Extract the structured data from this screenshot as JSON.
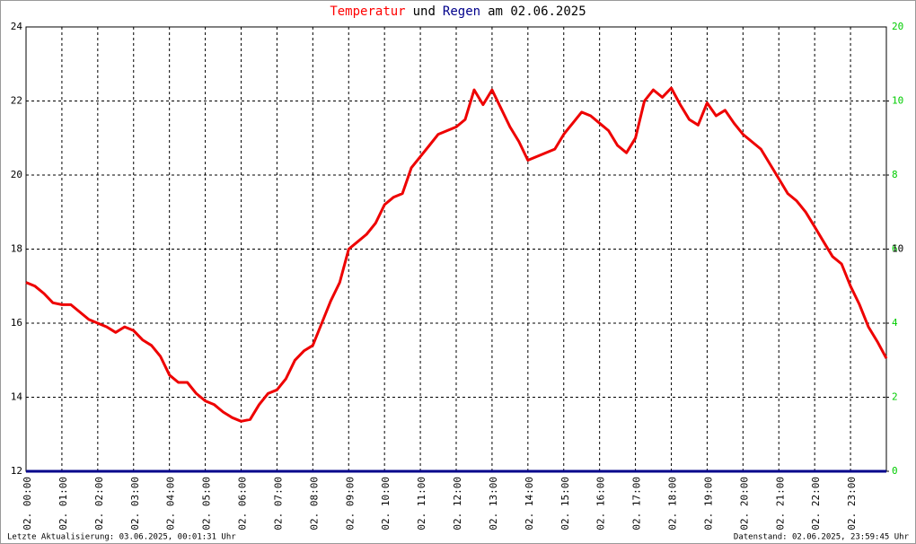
{
  "chart_data": {
    "type": "line",
    "title": [
      {
        "text": "Temperatur",
        "color": "#ff0000"
      },
      {
        "text": "und",
        "color": "#000000"
      },
      {
        "text": "Regen",
        "color": "#00008b"
      },
      {
        "text": "am 02.06.2025",
        "color": "#000000"
      }
    ],
    "x": [
      0,
      0.25,
      0.5,
      0.75,
      1,
      1.25,
      1.5,
      1.75,
      2,
      2.25,
      2.5,
      2.75,
      3,
      3.25,
      3.5,
      3.75,
      4,
      4.25,
      4.5,
      4.75,
      5,
      5.25,
      5.5,
      5.75,
      6,
      6.25,
      6.5,
      6.75,
      7,
      7.25,
      7.5,
      7.75,
      8,
      8.25,
      8.5,
      8.75,
      9,
      9.25,
      9.5,
      9.75,
      10,
      10.25,
      10.5,
      10.75,
      11,
      11.25,
      11.5,
      11.75,
      12,
      12.25,
      12.5,
      12.75,
      13,
      13.25,
      13.5,
      13.75,
      14,
      14.25,
      14.5,
      14.75,
      15,
      15.25,
      15.5,
      15.75,
      16,
      16.25,
      16.5,
      16.75,
      17,
      17.25,
      17.5,
      17.75,
      18,
      18.25,
      18.5,
      18.75,
      19,
      19.25,
      19.5,
      19.75,
      20,
      20.25,
      20.5,
      20.75,
      21,
      21.25,
      21.5,
      21.75,
      22,
      22.25,
      22.5,
      22.75,
      23,
      23.25,
      23.5,
      23.75,
      24
    ],
    "series": [
      {
        "name": "Temperatur",
        "color": "#ee0000",
        "values": [
          17.1,
          17.0,
          16.8,
          16.55,
          16.5,
          16.5,
          16.3,
          16.1,
          16.0,
          15.9,
          15.75,
          15.9,
          15.8,
          15.55,
          15.4,
          15.1,
          14.6,
          14.4,
          14.4,
          14.1,
          13.9,
          13.8,
          13.6,
          13.45,
          13.35,
          13.4,
          13.8,
          14.1,
          14.2,
          14.5,
          15.0,
          15.25,
          15.4,
          16.0,
          16.6,
          17.1,
          18.0,
          18.2,
          18.4,
          18.7,
          19.2,
          19.4,
          19.5,
          20.2,
          20.5,
          20.8,
          21.1,
          21.2,
          21.3,
          21.5,
          22.3,
          21.9,
          22.3,
          21.8,
          21.3,
          20.9,
          20.4,
          20.5,
          20.6,
          20.7,
          21.1,
          21.4,
          21.7,
          21.6,
          21.4,
          21.2,
          20.8,
          20.6,
          21.0,
          22.0,
          22.3,
          22.1,
          22.35,
          21.9,
          21.5,
          21.35,
          21.95,
          21.6,
          21.75,
          21.4,
          21.1,
          20.9,
          20.7,
          20.3,
          19.9,
          19.5,
          19.3,
          19.0,
          18.6,
          18.2,
          17.8,
          17.6,
          17.0,
          16.5,
          15.9,
          15.5,
          15.05
        ]
      },
      {
        "name": "Regen",
        "color": "#00008b",
        "axis": "y2",
        "x": [
          0,
          24
        ],
        "values": [
          0,
          0
        ]
      }
    ],
    "xlim": [
      0,
      24
    ],
    "xticks": [
      {
        "value": 0,
        "label": "02. 00:00"
      },
      {
        "value": 1,
        "label": "02. 01:00"
      },
      {
        "value": 2,
        "label": "02. 02:00"
      },
      {
        "value": 3,
        "label": "02. 03:00"
      },
      {
        "value": 4,
        "label": "02. 04:00"
      },
      {
        "value": 5,
        "label": "02. 05:00"
      },
      {
        "value": 6,
        "label": "02. 06:00"
      },
      {
        "value": 7,
        "label": "02. 07:00"
      },
      {
        "value": 8,
        "label": "02. 08:00"
      },
      {
        "value": 9,
        "label": "02. 09:00"
      },
      {
        "value": 10,
        "label": "02. 10:00"
      },
      {
        "value": 11,
        "label": "02. 11:00"
      },
      {
        "value": 12,
        "label": "02. 12:00"
      },
      {
        "value": 13,
        "label": "02. 13:00"
      },
      {
        "value": 14,
        "label": "02. 14:00"
      },
      {
        "value": 15,
        "label": "02. 15:00"
      },
      {
        "value": 16,
        "label": "02. 16:00"
      },
      {
        "value": 17,
        "label": "02. 17:00"
      },
      {
        "value": 18,
        "label": "02. 18:00"
      },
      {
        "value": 19,
        "label": "02. 19:00"
      },
      {
        "value": 20,
        "label": "02. 20:00"
      },
      {
        "value": 21,
        "label": "02. 21:00"
      },
      {
        "value": 22,
        "label": "02. 22:00"
      },
      {
        "value": 23,
        "label": "02. 23:00"
      }
    ],
    "ylim": [
      12,
      24
    ],
    "yticks": [
      12,
      14,
      16,
      18,
      20,
      22,
      24
    ],
    "y2lim": [
      0,
      12
    ],
    "y2ticks": [
      0,
      2,
      4,
      6,
      8,
      10
    ],
    "y2color": "#00cc00",
    "annotations": [
      {
        "text": "20",
        "y2": 12,
        "color": "#00cc00"
      },
      {
        "text": "10",
        "y": 18,
        "color": "#000000"
      }
    ],
    "grid": true,
    "footer_left": "Letzte Aktualisierung: 03.06.2025, 00:01:31 Uhr",
    "footer_right": "Datenstand: 02.06.2025, 23:59:45 Uhr"
  }
}
